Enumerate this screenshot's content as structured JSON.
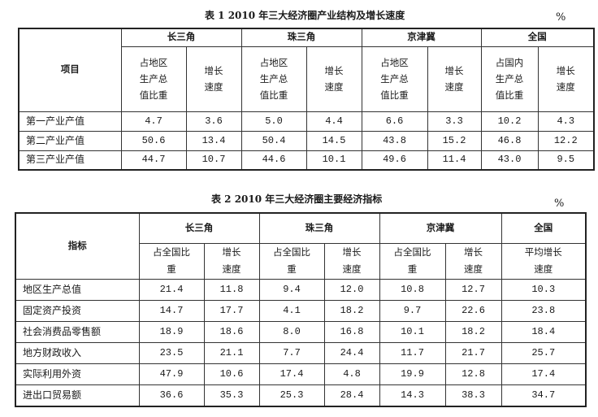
{
  "table1": {
    "title": "表 1   2010 年三大经济圈产业结构及增长速度",
    "unit": "%",
    "item_header": "项目",
    "groups": [
      {
        "name": "长三角",
        "sub": [
          "占地区生产总值比重",
          "增长速度"
        ]
      },
      {
        "name": "珠三角",
        "sub": [
          "占地区生产总值比重",
          "增长速度"
        ]
      },
      {
        "name": "京津冀",
        "sub": [
          "占地区生产总值比重",
          "增长速度"
        ]
      },
      {
        "name": "全国",
        "sub": [
          "占国内生产总值比重",
          "增长速度"
        ]
      }
    ],
    "rows": [
      {
        "label": "第一产业产值",
        "values": [
          "4.7",
          "3.6",
          "5.0",
          "4.4",
          "6.6",
          "3.3",
          "10.2",
          "4.3"
        ]
      },
      {
        "label": "第二产业产值",
        "values": [
          "50.6",
          "13.4",
          "50.4",
          "14.5",
          "43.8",
          "15.2",
          "46.8",
          "12.2"
        ]
      },
      {
        "label": "第三产业产值",
        "values": [
          "44.7",
          "10.7",
          "44.6",
          "10.1",
          "49.6",
          "11.4",
          "43.0",
          "9.5"
        ]
      }
    ]
  },
  "table2": {
    "title": "表 2   2010 年三大经济圈主要经济指标",
    "unit": "%",
    "item_header": "指标",
    "groups": [
      {
        "name": "长三角",
        "sub": [
          "占全国比重",
          "增长速度"
        ]
      },
      {
        "name": "珠三角",
        "sub": [
          "占全国比重",
          "增长速度"
        ]
      },
      {
        "name": "京津冀",
        "sub": [
          "占全国比重",
          "增长速度"
        ]
      },
      {
        "name": "全国",
        "sub": [
          "平均增长速度"
        ]
      }
    ],
    "rows": [
      {
        "label": "地区生产总值",
        "values": [
          "21.4",
          "11.8",
          "9.4",
          "12.0",
          "10.8",
          "12.7",
          "10.3"
        ]
      },
      {
        "label": "固定资产投资",
        "values": [
          "14.7",
          "17.7",
          "4.1",
          "18.2",
          "9.7",
          "22.6",
          "23.8"
        ]
      },
      {
        "label": "社会消费品零售额",
        "values": [
          "18.9",
          "18.6",
          "8.0",
          "16.8",
          "10.1",
          "18.2",
          "18.4"
        ]
      },
      {
        "label": "地方财政收入",
        "values": [
          "23.5",
          "21.1",
          "7.7",
          "24.4",
          "11.7",
          "21.7",
          "25.7"
        ]
      },
      {
        "label": "实际利用外资",
        "values": [
          "47.9",
          "10.6",
          "17.4",
          "4.8",
          "19.9",
          "12.8",
          "17.4"
        ]
      },
      {
        "label": "进出口贸易额",
        "values": [
          "36.6",
          "35.3",
          "25.3",
          "28.4",
          "14.3",
          "38.3",
          "34.7"
        ]
      }
    ]
  }
}
